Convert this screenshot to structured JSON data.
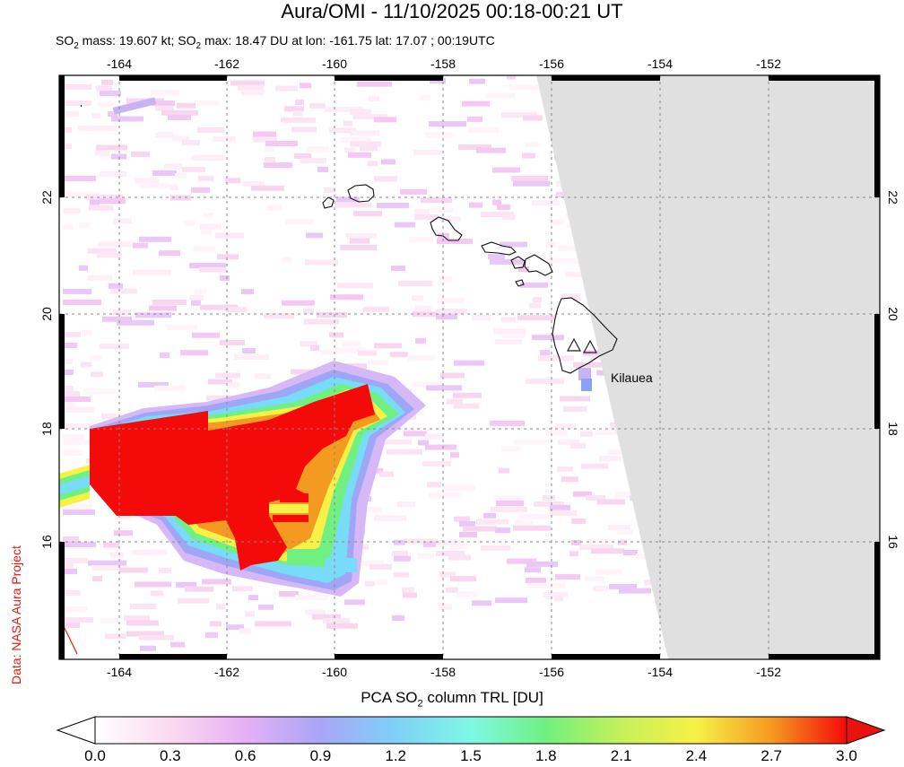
{
  "title": "Aura/OMI - 11/10/2025 00:18-00:21 UT",
  "subtitle": {
    "mass_prefix": "SO",
    "mass_sub": "2",
    "mass_text": " mass: 19.607 kt; SO",
    "max_sub": "2",
    "rest": " max: 18.47 DU at lon: -161.75 lat: 17.07 ; 00:19UTC"
  },
  "credit": "Data: NASA Aura Project",
  "volcano_label": "Kilauea",
  "colorbar": {
    "label_prefix": "PCA SO",
    "label_sub": "2",
    "label_suffix": " column TRL [DU]",
    "ticks": [
      "0.0",
      "0.3",
      "0.6",
      "0.9",
      "1.2",
      "1.5",
      "1.8",
      "2.1",
      "2.4",
      "2.7",
      "3.0"
    ],
    "colors": [
      "#ffffff",
      "#fbd9f0",
      "#e6b0f5",
      "#a9a5f7",
      "#7fd0f7",
      "#7ff7e6",
      "#6ff07f",
      "#c6f05a",
      "#f7f046",
      "#f59a20",
      "#f50a0a"
    ],
    "no_data_color": "#e0e0e0"
  },
  "map": {
    "lon_range": [
      -165,
      -150
    ],
    "lat_range": [
      14,
      24
    ],
    "lon_ticks": [
      "-164",
      "-162",
      "-160",
      "-158",
      "-156",
      "-154",
      "-152"
    ],
    "lat_ticks": [
      "16",
      "18",
      "20",
      "22"
    ],
    "grid": "dashed"
  }
}
